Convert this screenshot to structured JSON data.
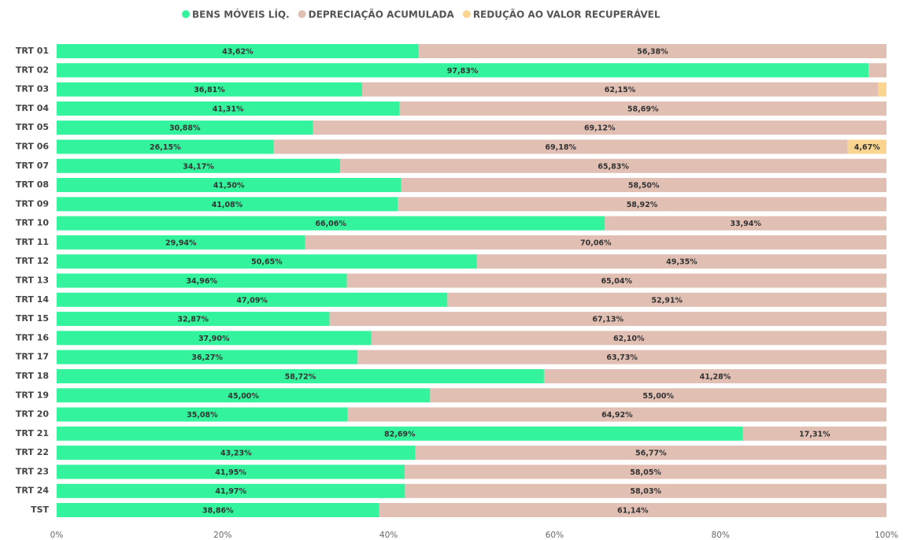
{
  "chart_data": {
    "type": "stacked-bar-horizontal",
    "categories": [
      "TRT 01",
      "TRT 02",
      "TRT 03",
      "TRT 04",
      "TRT 05",
      "TRT 06",
      "TRT 07",
      "TRT 08",
      "TRT 09",
      "TRT 10",
      "TRT 11",
      "TRT 12",
      "TRT 13",
      "TRT 14",
      "TRT 15",
      "TRT 16",
      "TRT 17",
      "TRT 18",
      "TRT 19",
      "TRT 20",
      "TRT 21",
      "TRT 22",
      "TRT 23",
      "TRT 24",
      "TST"
    ],
    "series": [
      {
        "name": "BENS MÓVEIS LÍQ.",
        "color": "#33f39c",
        "values": [
          43.62,
          97.83,
          36.81,
          41.31,
          30.88,
          26.15,
          34.17,
          41.5,
          41.08,
          66.06,
          29.94,
          50.65,
          34.96,
          47.09,
          32.87,
          37.9,
          36.27,
          58.72,
          45.0,
          35.08,
          82.69,
          43.23,
          41.95,
          41.97,
          38.86
        ],
        "value_labels": [
          "43,62%",
          "97,83%",
          "36,81%",
          "41,31%",
          "30,88%",
          "26,15%",
          "34,17%",
          "41,50%",
          "41,08%",
          "66,06%",
          "29,94%",
          "50,65%",
          "34,96%",
          "47,09%",
          "32,87%",
          "37,90%",
          "36,27%",
          "58,72%",
          "45,00%",
          "35,08%",
          "82,69%",
          "43,23%",
          "41,95%",
          "41,97%",
          "38,86%"
        ]
      },
      {
        "name": "DEPRECIAÇÃO ACUMULADA",
        "color": "#e1bfb3",
        "values": [
          56.38,
          2.17,
          62.15,
          58.69,
          69.12,
          69.18,
          65.83,
          58.5,
          58.92,
          33.94,
          70.06,
          49.35,
          65.04,
          52.91,
          67.13,
          62.1,
          63.73,
          41.28,
          55.0,
          64.92,
          17.31,
          56.77,
          58.05,
          58.03,
          61.14
        ],
        "value_labels": [
          "56,38%",
          null,
          "62,15%",
          "58,69%",
          "69,12%",
          "69,18%",
          "65,83%",
          "58,50%",
          "58,92%",
          "33,94%",
          "70,06%",
          "49,35%",
          "65,04%",
          "52,91%",
          "67,13%",
          "62,10%",
          "63,73%",
          "41,28%",
          "55,00%",
          "64,92%",
          "17,31%",
          "56,77%",
          "58,05%",
          "58,03%",
          "61,14%"
        ]
      },
      {
        "name": "REDUÇÃO AO VALOR RECUPERÁVEL",
        "color": "#f9d58f",
        "values": [
          0,
          0,
          1.04,
          0,
          0,
          4.67,
          0,
          0,
          0,
          0,
          0,
          0,
          0,
          0,
          0,
          0,
          0,
          0,
          0,
          0,
          0,
          0,
          0,
          0,
          0
        ],
        "value_labels": [
          null,
          null,
          null,
          null,
          null,
          "4,67%",
          null,
          null,
          null,
          null,
          null,
          null,
          null,
          null,
          null,
          null,
          null,
          null,
          null,
          null,
          null,
          null,
          null,
          null,
          null
        ]
      }
    ],
    "xlim": [
      0,
      100
    ],
    "xticks": [
      {
        "value": 0,
        "label": "0%"
      },
      {
        "value": 20,
        "label": "20%"
      },
      {
        "value": 40,
        "label": "40%"
      },
      {
        "value": 60,
        "label": "60%"
      },
      {
        "value": 80,
        "label": "80%"
      },
      {
        "value": 100,
        "label": "100%"
      }
    ],
    "legend": "top"
  }
}
